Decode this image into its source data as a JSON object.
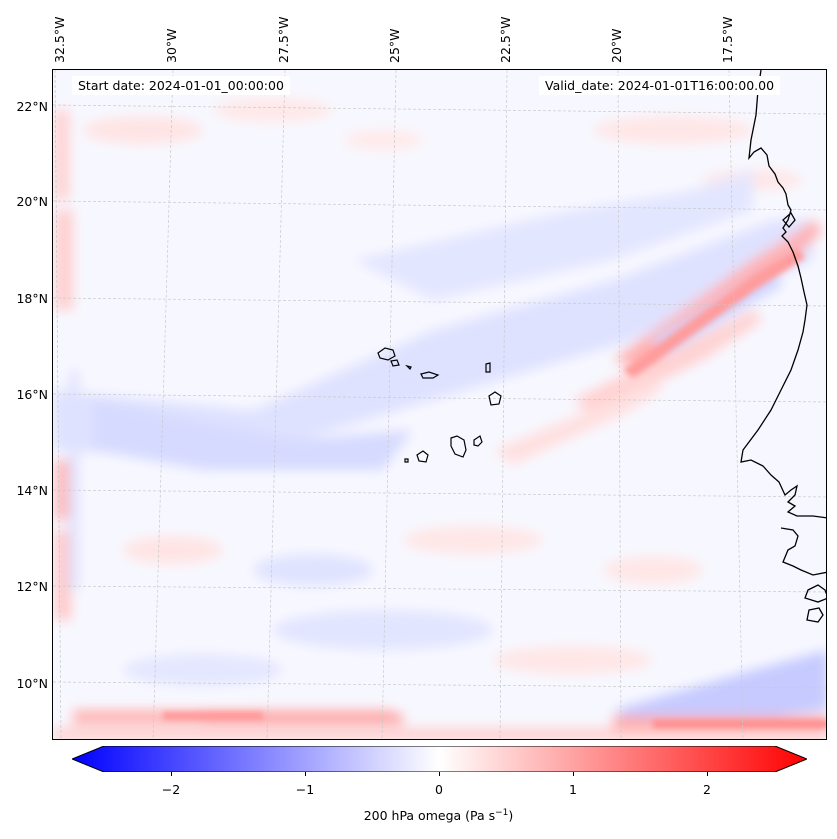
{
  "map": {
    "start_date": "Start date: 2024-01-01_00:00:00",
    "valid_date": "Valid_date: 2024-01-01T16:00:00.00",
    "longitude_labels": [
      "32.5°W",
      "30°W",
      "27.5°W",
      "25°W",
      "22.5°W",
      "20°W",
      "17.5°W"
    ],
    "latitude_labels": [
      "22°N",
      "20°N",
      "18°N",
      "16°N",
      "14°N",
      "12°N",
      "10°N"
    ],
    "field": "200 hPa omega",
    "features": [
      "Cape Verde islands",
      "West African coastline (Mauritania, Senegal, The Gambia, Guinea-Bissau)"
    ]
  },
  "colorbar": {
    "ticks": [
      "−2",
      "−1",
      "0",
      "1",
      "2"
    ],
    "tick_values": [
      -2,
      -1,
      0,
      1,
      2
    ],
    "range": [
      -2.5,
      2.5
    ],
    "label_main": "200 hPa omega (Pa s",
    "label_sup": "−1",
    "label_end": ")",
    "colors": {
      "low": "#0000ff",
      "mid": "#ffffff",
      "high": "#ff0000"
    }
  }
}
